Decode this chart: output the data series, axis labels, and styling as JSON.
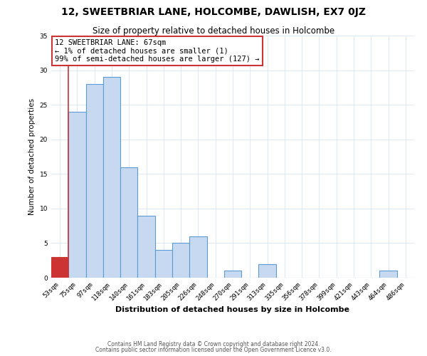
{
  "title": "12, SWEETBRIAR LANE, HOLCOMBE, DAWLISH, EX7 0JZ",
  "subtitle": "Size of property relative to detached houses in Holcombe",
  "xlabel": "Distribution of detached houses by size in Holcombe",
  "ylabel": "Number of detached properties",
  "bin_labels": [
    "53sqm",
    "75sqm",
    "97sqm",
    "118sqm",
    "140sqm",
    "161sqm",
    "183sqm",
    "205sqm",
    "226sqm",
    "248sqm",
    "270sqm",
    "291sqm",
    "313sqm",
    "335sqm",
    "356sqm",
    "378sqm",
    "399sqm",
    "421sqm",
    "443sqm",
    "464sqm",
    "486sqm"
  ],
  "bar_values": [
    3,
    24,
    28,
    29,
    16,
    9,
    4,
    5,
    6,
    0,
    1,
    0,
    2,
    0,
    0,
    0,
    0,
    0,
    0,
    1,
    0
  ],
  "highlight_index": 0,
  "highlight_color": "#cc3333",
  "bar_color": "#c6d9f0",
  "bar_edge_color": "#5b9bd5",
  "highlight_edge_color": "#cc3333",
  "annotation_text": "12 SWEETBRIAR LANE: 67sqm\n← 1% of detached houses are smaller (1)\n99% of semi-detached houses are larger (127) →",
  "annotation_box_edge": "#cc3333",
  "ylim": [
    0,
    35
  ],
  "yticks": [
    0,
    5,
    10,
    15,
    20,
    25,
    30,
    35
  ],
  "footer1": "Contains HM Land Registry data © Crown copyright and database right 2024.",
  "footer2": "Contains public sector information licensed under the Open Government Licence v3.0.",
  "background_color": "#ffffff",
  "grid_color": "#dce9f5",
  "title_fontsize": 10,
  "subtitle_fontsize": 8.5,
  "xlabel_fontsize": 8,
  "ylabel_fontsize": 7.5,
  "tick_fontsize": 6.5,
  "annotation_fontsize": 7.5,
  "footer_fontsize": 5.5
}
